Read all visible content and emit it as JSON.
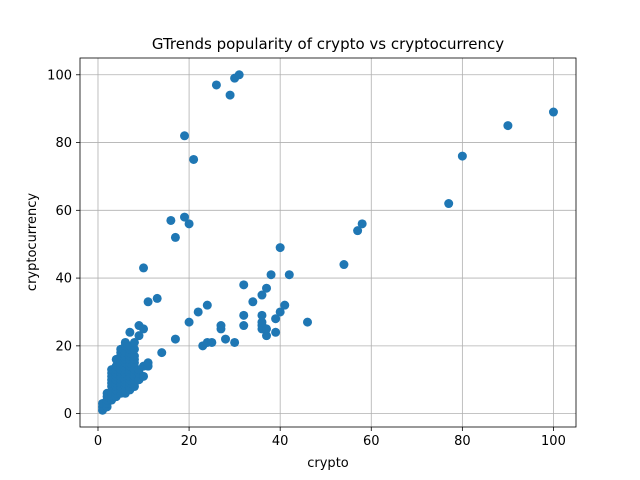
{
  "chart_data": {
    "type": "scatter",
    "title": "GTrends popularity of crypto vs cryptocurrency",
    "xlabel": "crypto",
    "ylabel": "cryptocurrency",
    "xlim": [
      -3.95,
      104.95
    ],
    "ylim": [
      -3.95,
      104.95
    ],
    "xticks": [
      "0",
      "20",
      "40",
      "60",
      "80",
      "100"
    ],
    "yticks": [
      "0",
      "20",
      "40",
      "60",
      "80",
      "100"
    ],
    "grid": true,
    "color": "#1f77b4",
    "series": [
      {
        "points": [
          [
            1,
            1
          ],
          [
            1,
            2
          ],
          [
            1,
            3
          ],
          [
            2,
            2
          ],
          [
            2,
            3
          ],
          [
            2,
            4
          ],
          [
            2,
            5
          ],
          [
            2,
            6
          ],
          [
            3,
            4
          ],
          [
            3,
            5
          ],
          [
            3,
            6
          ],
          [
            3,
            8
          ],
          [
            3,
            9
          ],
          [
            3,
            10
          ],
          [
            3,
            11
          ],
          [
            3,
            12
          ],
          [
            3,
            13
          ],
          [
            4,
            5
          ],
          [
            4,
            6
          ],
          [
            4,
            7
          ],
          [
            4,
            8
          ],
          [
            4,
            9
          ],
          [
            4,
            10
          ],
          [
            4,
            11
          ],
          [
            4,
            12
          ],
          [
            4,
            13
          ],
          [
            4,
            14
          ],
          [
            4,
            16
          ],
          [
            5,
            6
          ],
          [
            5,
            7
          ],
          [
            5,
            8
          ],
          [
            5,
            9
          ],
          [
            5,
            10
          ],
          [
            5,
            11
          ],
          [
            5,
            12
          ],
          [
            5,
            13
          ],
          [
            5,
            14
          ],
          [
            5,
            15
          ],
          [
            5,
            17
          ],
          [
            5,
            18
          ],
          [
            5,
            19
          ],
          [
            6,
            6
          ],
          [
            6,
            7
          ],
          [
            6,
            8
          ],
          [
            6,
            9
          ],
          [
            6,
            10
          ],
          [
            6,
            11
          ],
          [
            6,
            12
          ],
          [
            6,
            13
          ],
          [
            6,
            14
          ],
          [
            6,
            15
          ],
          [
            6,
            16
          ],
          [
            6,
            17
          ],
          [
            6,
            18
          ],
          [
            6,
            20
          ],
          [
            6,
            21
          ],
          [
            7,
            7
          ],
          [
            7,
            8
          ],
          [
            7,
            9
          ],
          [
            7,
            10
          ],
          [
            7,
            11
          ],
          [
            7,
            12
          ],
          [
            7,
            13
          ],
          [
            7,
            14
          ],
          [
            7,
            15
          ],
          [
            7,
            16
          ],
          [
            7,
            17
          ],
          [
            7,
            18
          ],
          [
            7,
            19
          ],
          [
            7,
            20
          ],
          [
            7,
            24
          ],
          [
            8,
            8
          ],
          [
            8,
            9
          ],
          [
            8,
            10
          ],
          [
            8,
            11
          ],
          [
            8,
            12
          ],
          [
            8,
            13
          ],
          [
            8,
            15
          ],
          [
            8,
            16
          ],
          [
            8,
            17
          ],
          [
            8,
            19
          ],
          [
            8,
            21
          ],
          [
            9,
            10
          ],
          [
            9,
            12
          ],
          [
            9,
            13
          ],
          [
            9,
            23
          ],
          [
            9,
            26
          ],
          [
            10,
            11
          ],
          [
            10,
            14
          ],
          [
            10,
            25
          ],
          [
            10,
            43
          ],
          [
            11,
            14
          ],
          [
            11,
            15
          ],
          [
            11,
            33
          ],
          [
            13,
            34
          ],
          [
            14,
            18
          ],
          [
            16,
            57
          ],
          [
            17,
            22
          ],
          [
            17,
            52
          ],
          [
            19,
            58
          ],
          [
            19,
            82
          ],
          [
            20,
            27
          ],
          [
            20,
            56
          ],
          [
            21,
            75
          ],
          [
            22,
            30
          ],
          [
            23,
            20
          ],
          [
            24,
            21
          ],
          [
            24,
            32
          ],
          [
            25,
            21
          ],
          [
            26,
            97
          ],
          [
            27,
            25
          ],
          [
            27,
            26
          ],
          [
            28,
            22
          ],
          [
            29,
            94
          ],
          [
            30,
            21
          ],
          [
            30,
            99
          ],
          [
            31,
            100
          ],
          [
            32,
            26
          ],
          [
            32,
            29
          ],
          [
            32,
            38
          ],
          [
            34,
            33
          ],
          [
            36,
            25
          ],
          [
            36,
            26
          ],
          [
            36,
            27
          ],
          [
            36,
            29
          ],
          [
            36,
            35
          ],
          [
            37,
            23
          ],
          [
            37,
            25
          ],
          [
            37,
            37
          ],
          [
            38,
            41
          ],
          [
            39,
            24
          ],
          [
            39,
            28
          ],
          [
            40,
            30
          ],
          [
            40,
            49
          ],
          [
            41,
            32
          ],
          [
            42,
            41
          ],
          [
            46,
            27
          ],
          [
            54,
            44
          ],
          [
            57,
            54
          ],
          [
            58,
            56
          ],
          [
            77,
            62
          ],
          [
            80,
            76
          ],
          [
            90,
            85
          ],
          [
            100,
            89
          ]
        ]
      }
    ]
  }
}
